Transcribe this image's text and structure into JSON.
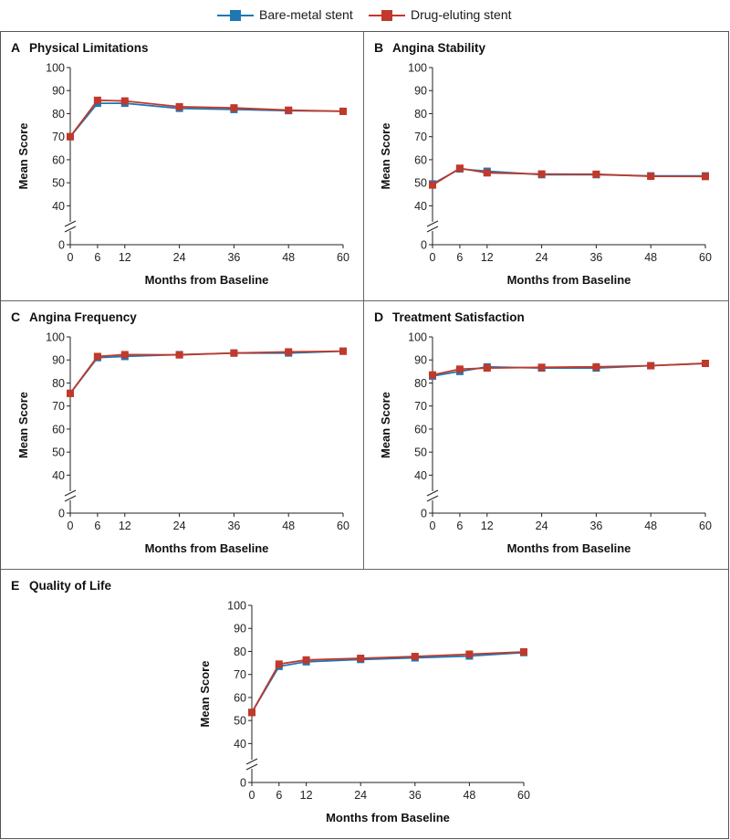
{
  "legend": {
    "items": [
      {
        "label": "Bare-metal stent",
        "color": "#1f77b4"
      },
      {
        "label": "Drug-eluting stent",
        "color": "#c0392b"
      }
    ]
  },
  "chart_data": [
    {
      "type": "line",
      "letter": "A",
      "title": "Physical Limitations",
      "xlabel": "Months from Baseline",
      "ylabel": "Mean Score",
      "x": [
        0,
        6,
        12,
        24,
        36,
        48,
        60
      ],
      "xticks": [
        0,
        6,
        12,
        24,
        36,
        48,
        60
      ],
      "yticks": [
        0,
        40,
        50,
        60,
        70,
        80,
        90,
        100
      ],
      "ylim": [
        35,
        100
      ],
      "axis_break": true,
      "series": [
        {
          "name": "Bare-metal stent",
          "color": "#1f77b4",
          "values": [
            70,
            84.5,
            84.5,
            82.3,
            81.8,
            81.3,
            81
          ]
        },
        {
          "name": "Drug-eluting stent",
          "color": "#c0392b",
          "values": [
            70,
            85.8,
            85.5,
            83,
            82.5,
            81.5,
            81
          ]
        }
      ]
    },
    {
      "type": "line",
      "letter": "B",
      "title": "Angina Stability",
      "xlabel": "Months from Baseline",
      "ylabel": "Mean Score",
      "x": [
        0,
        6,
        12,
        24,
        36,
        48,
        60
      ],
      "xticks": [
        0,
        6,
        12,
        24,
        36,
        48,
        60
      ],
      "yticks": [
        0,
        40,
        50,
        60,
        70,
        80,
        90,
        100
      ],
      "ylim": [
        35,
        100
      ],
      "axis_break": true,
      "series": [
        {
          "name": "Bare-metal stent",
          "color": "#1f77b4",
          "values": [
            49.5,
            56,
            55,
            53.5,
            53.5,
            53,
            53
          ]
        },
        {
          "name": "Drug-eluting stent",
          "color": "#c0392b",
          "values": [
            49,
            56.3,
            54.3,
            53.8,
            53.7,
            52.8,
            52.7
          ]
        }
      ]
    },
    {
      "type": "line",
      "letter": "C",
      "title": "Angina Frequency",
      "xlabel": "Months from Baseline",
      "ylabel": "Mean Score",
      "x": [
        0,
        6,
        12,
        24,
        36,
        48,
        60
      ],
      "xticks": [
        0,
        6,
        12,
        24,
        36,
        48,
        60
      ],
      "yticks": [
        0,
        40,
        50,
        60,
        70,
        80,
        90,
        100
      ],
      "ylim": [
        35,
        100
      ],
      "axis_break": true,
      "series": [
        {
          "name": "Bare-metal stent",
          "color": "#1f77b4",
          "values": [
            75.5,
            91,
            91.5,
            92.3,
            93,
            93,
            93.8
          ]
        },
        {
          "name": "Drug-eluting stent",
          "color": "#c0392b",
          "values": [
            75.5,
            91.5,
            92.3,
            92.2,
            93,
            93.5,
            93.8
          ]
        }
      ]
    },
    {
      "type": "line",
      "letter": "D",
      "title": "Treatment Satisfaction",
      "xlabel": "Months from Baseline",
      "ylabel": "Mean Score",
      "x": [
        0,
        6,
        12,
        24,
        36,
        48,
        60
      ],
      "xticks": [
        0,
        6,
        12,
        24,
        36,
        48,
        60
      ],
      "yticks": [
        0,
        40,
        50,
        60,
        70,
        80,
        90,
        100
      ],
      "ylim": [
        35,
        100
      ],
      "axis_break": true,
      "series": [
        {
          "name": "Bare-metal stent",
          "color": "#1f77b4",
          "values": [
            83,
            85,
            87,
            86.5,
            86.5,
            87.5,
            88.5
          ]
        },
        {
          "name": "Drug-eluting stent",
          "color": "#c0392b",
          "values": [
            83.5,
            86,
            86.5,
            86.8,
            87,
            87.5,
            88.5
          ]
        }
      ]
    },
    {
      "type": "line",
      "letter": "E",
      "title": "Quality of Life",
      "xlabel": "Months from Baseline",
      "ylabel": "Mean Score",
      "x": [
        0,
        6,
        12,
        24,
        36,
        48,
        60
      ],
      "xticks": [
        0,
        6,
        12,
        24,
        36,
        48,
        60
      ],
      "yticks": [
        0,
        40,
        50,
        60,
        70,
        80,
        90,
        100
      ],
      "ylim": [
        35,
        100
      ],
      "axis_break": true,
      "series": [
        {
          "name": "Bare-metal stent",
          "color": "#1f77b4",
          "values": [
            53.5,
            73.5,
            75.5,
            76.5,
            77.2,
            78,
            79.5
          ]
        },
        {
          "name": "Drug-eluting stent",
          "color": "#c0392b",
          "values": [
            53.5,
            74.5,
            76.3,
            77,
            77.8,
            78.8,
            79.8
          ]
        }
      ]
    }
  ]
}
